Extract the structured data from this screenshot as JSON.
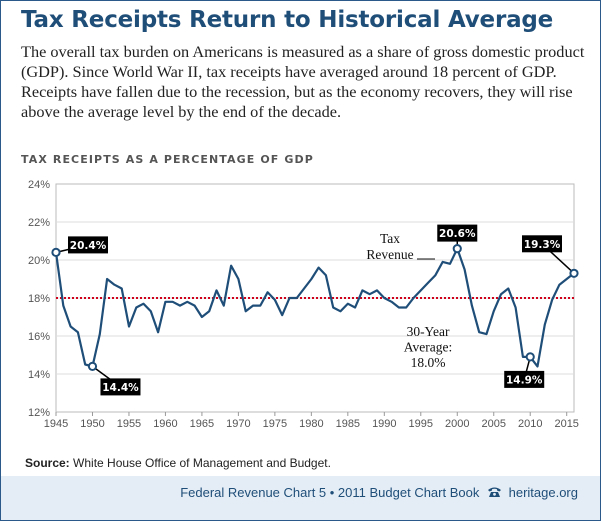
{
  "header": {
    "title": "Tax Receipts Return to Historical Average",
    "intro": "The overall tax burden on Americans is measured as a share of gross domestic product (GDP). Since World War II, tax receipts have averaged around 18 percent of GDP. Receipts have fallen due to the recession, but as the economy recovers, they will rise above the average level by the end of the decade."
  },
  "source": {
    "label": "Source:",
    "text": " White House Office of Management and Budget."
  },
  "footer": {
    "chart_ref": "Federal Revenue Chart 5 • 2011 Budget Chart Book",
    "site": "heritage.org",
    "icon": "phone-icon"
  },
  "colors": {
    "title": "#1f4e79",
    "line": "#1f4e79",
    "average": "#d0021b",
    "grid": "#dddddd",
    "callout_bg": "#000000"
  },
  "chart_data": {
    "type": "line",
    "title": "TAX RECEIPTS AS A PERCENTAGE OF GDP",
    "xlabel": "",
    "ylabel": "",
    "xlim": [
      1945,
      2016
    ],
    "ylim": [
      12,
      24
    ],
    "x_ticks": [
      1945,
      1950,
      1955,
      1960,
      1965,
      1970,
      1975,
      1980,
      1985,
      1990,
      1995,
      2000,
      2005,
      2010,
      2015
    ],
    "y_ticks": [
      12,
      14,
      16,
      18,
      20,
      22,
      24
    ],
    "y_tick_labels": [
      "12%",
      "14%",
      "16%",
      "18%",
      "20%",
      "22%",
      "24%"
    ],
    "grid": "horizontal",
    "series": [
      {
        "x": [
          1945,
          1946,
          1947,
          1948,
          1949,
          1950,
          1951,
          1952,
          1953,
          1954,
          1955,
          1956,
          1957,
          1958,
          1959,
          1960,
          1961,
          1962,
          1963,
          1964,
          1965,
          1966,
          1967,
          1968,
          1969,
          1970,
          1971,
          1972,
          1973,
          1974,
          1975,
          1976,
          1977,
          1978,
          1979,
          1980,
          1981,
          1982,
          1983,
          1984,
          1985,
          1986,
          1987,
          1988,
          1989,
          1990,
          1991,
          1992,
          1993,
          1994,
          1995,
          1996,
          1997,
          1998,
          1999,
          2000,
          2001,
          2002,
          2003,
          2004,
          2005,
          2006,
          2007,
          2008,
          2009,
          2010,
          2011,
          2012,
          2013,
          2014,
          2015,
          2016
        ],
        "y": [
          20.4,
          17.6,
          16.5,
          16.2,
          14.5,
          14.4,
          16.1,
          19.0,
          18.7,
          18.5,
          16.5,
          17.5,
          17.7,
          17.3,
          16.2,
          17.8,
          17.8,
          17.6,
          17.8,
          17.6,
          17.0,
          17.3,
          18.4,
          17.6,
          19.7,
          19.0,
          17.3,
          17.6,
          17.6,
          18.3,
          17.9,
          17.1,
          18.0,
          18.0,
          18.5,
          19.0,
          19.6,
          19.2,
          17.5,
          17.3,
          17.7,
          17.5,
          18.4,
          18.2,
          18.4,
          18.0,
          17.8,
          17.5,
          17.5,
          18.0,
          18.4,
          18.8,
          19.2,
          19.9,
          19.8,
          20.6,
          19.5,
          17.6,
          16.2,
          16.1,
          17.3,
          18.2,
          18.5,
          17.5,
          14.9,
          14.9,
          14.4,
          16.6,
          17.9,
          18.7,
          19.0,
          19.3
        ]
      }
    ],
    "average": {
      "value": 18.0,
      "label": "30-Year Average: 18.0%"
    },
    "series_annotation": "Tax Revenue",
    "callouts": [
      {
        "x": 1945,
        "y": 20.4,
        "label": "20.4%"
      },
      {
        "x": 1950,
        "y": 14.4,
        "label": "14.4%"
      },
      {
        "x": 2000,
        "y": 20.6,
        "label": "20.6%"
      },
      {
        "x": 2010,
        "y": 14.9,
        "label": "14.9%"
      },
      {
        "x": 2016,
        "y": 19.3,
        "label": "19.3%"
      }
    ]
  }
}
